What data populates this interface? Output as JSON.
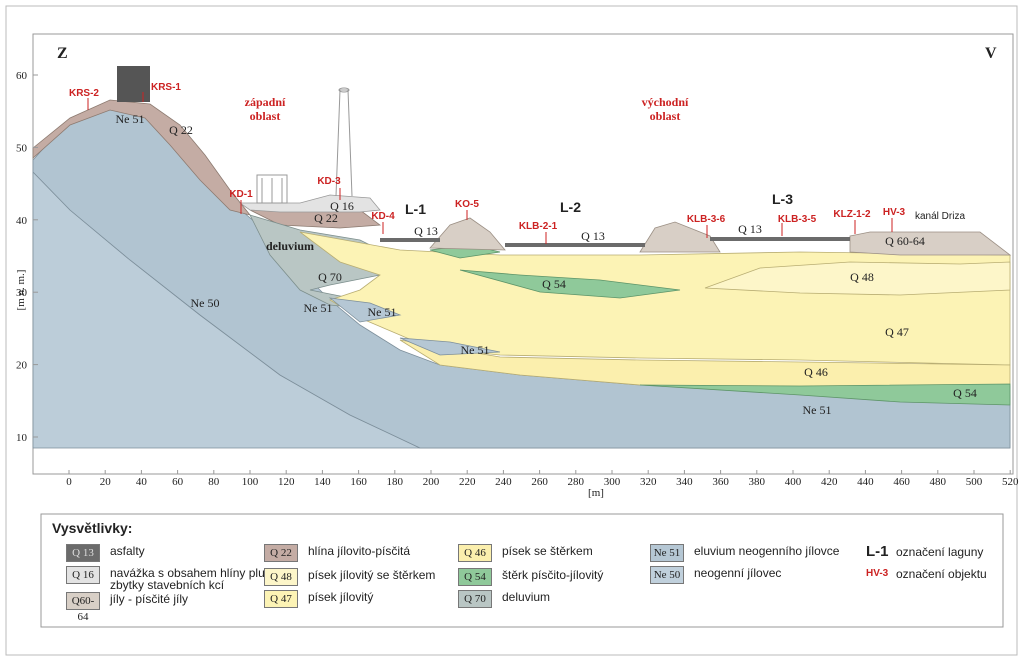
{
  "direction": {
    "west": "Z",
    "east": "V"
  },
  "axes": {
    "y_label": "[m n. m.]",
    "x_label": "[m]",
    "y_ticks": [
      "60",
      "50",
      "40",
      "30",
      "20",
      "10"
    ],
    "x_ticks": [
      "0",
      "20",
      "40",
      "60",
      "80",
      "100",
      "120",
      "140",
      "160",
      "180",
      "200",
      "220",
      "240",
      "260",
      "280",
      "300",
      "320",
      "340",
      "360",
      "380",
      "400",
      "420",
      "440",
      "460",
      "480",
      "500",
      "520"
    ]
  },
  "areas": {
    "west": "západní\noblast",
    "east": "východní\noblast"
  },
  "lagoons": [
    "L-1",
    "L-2",
    "L-3"
  ],
  "objects": [
    "KRS-2",
    "KRS-1",
    "KD-1",
    "KD-3",
    "KD-4",
    "KO-5",
    "KLB-2-1",
    "KLB-3-6",
    "KLB-3-5",
    "KLZ-1-2",
    "HV-3"
  ],
  "canal": "kanál Driza",
  "layer_labels": [
    "Ne 51",
    "Q 22",
    "Q 16",
    "Q 22",
    "deluvium",
    "Q 13",
    "Q 13",
    "Q 13",
    "Q 60-64",
    "Q 70",
    "Q 54",
    "Q 48",
    "Ne 50",
    "Ne 51",
    "Ne 51",
    "Q 47",
    "Ne 51",
    "Q 46",
    "Q 54",
    "Ne 51"
  ],
  "legend": {
    "title": "Vysvětlivky:",
    "items": [
      {
        "code": "Q 13",
        "text": "asfalty",
        "color": "#6b6b6b"
      },
      {
        "code": "Q 16",
        "text": "navážka s obsahem hlíny plus zbytky stavebních kcí",
        "color": "#e3e3e3"
      },
      {
        "code": "Q60-64",
        "text": "jíly - písčité jíly",
        "color": "#d8cfc6"
      },
      {
        "code": "Q 22",
        "text": "hlína jílovito-písčitá",
        "color": "#c4aca4"
      },
      {
        "code": "Q 48",
        "text": "písek jílovitý se štěrkem",
        "color": "#fdf6c9"
      },
      {
        "code": "Q 47",
        "text": "písek jílovitý",
        "color": "#fcf3b5"
      },
      {
        "code": "Q 46",
        "text": "písek se štěrkem",
        "color": "#fbefad"
      },
      {
        "code": "Q 54",
        "text": "štěrk písčito-jílovitý",
        "color": "#8fc99a"
      },
      {
        "code": "Q 70",
        "text": "deluvium",
        "color": "#b9c6c4"
      },
      {
        "code": "Ne 51",
        "text": "eluvium neogenního jílovce",
        "color": "#b5c7d4"
      },
      {
        "code": "Ne 50",
        "text": "neogenní jílovec",
        "color": "#c0d0dc"
      },
      {
        "code": "L-1",
        "text": "označení laguny"
      },
      {
        "code": "HV-3",
        "text": "označení objektu"
      }
    ]
  }
}
